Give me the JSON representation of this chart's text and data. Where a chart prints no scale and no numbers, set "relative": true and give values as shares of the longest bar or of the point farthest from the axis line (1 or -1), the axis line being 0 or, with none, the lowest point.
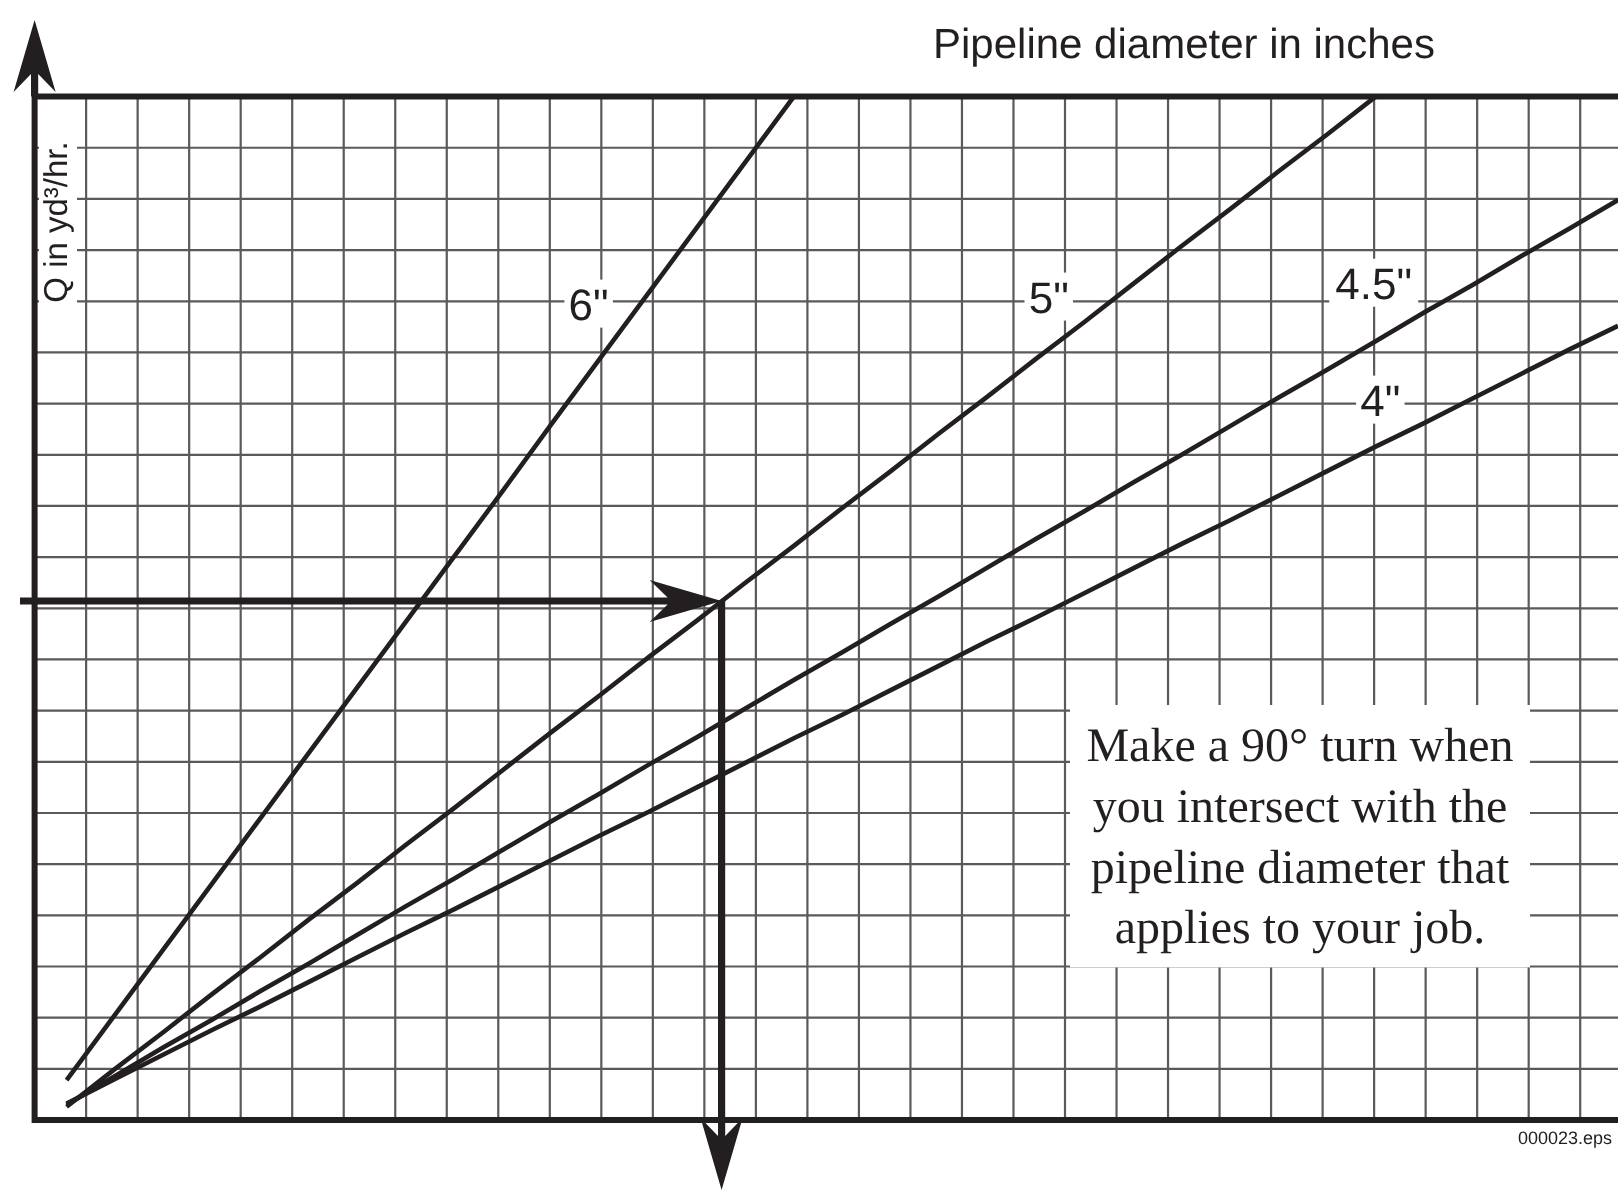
{
  "chart_data": {
    "type": "line",
    "title": "Pipeline diameter in inches",
    "ylabel": "Q in yd³/hr.",
    "relative": true,
    "grid": true,
    "categories": [
      null,
      null,
      null,
      null,
      null,
      null,
      null,
      null,
      null,
      null,
      null,
      null,
      null,
      null,
      null,
      null,
      null,
      null,
      null,
      null,
      null,
      null,
      null,
      null,
      null,
      null,
      null,
      null,
      null,
      null,
      null,
      null,
      null
    ],
    "series": [
      {
        "name": "6\"",
        "color": "#231f20",
        "values": [
          0.039,
          0.103,
          0.167,
          0.231,
          0.295,
          0.359,
          0.423,
          0.487,
          0.551,
          0.615,
          0.68,
          0.744,
          0.808,
          0.872,
          0.936,
          1.0,
          null,
          null,
          null,
          null,
          null,
          null,
          null,
          null,
          null,
          null,
          null,
          null,
          null,
          null,
          null,
          null,
          null
        ]
      },
      {
        "name": "5\"",
        "color": "#231f20",
        "values": [
          0.013,
          0.05,
          0.086,
          0.123,
          0.159,
          0.196,
          0.232,
          0.269,
          0.305,
          0.342,
          0.379,
          0.415,
          0.452,
          0.488,
          0.525,
          0.561,
          0.598,
          0.634,
          0.671,
          0.707,
          0.744,
          0.78,
          0.817,
          0.854,
          0.89,
          0.927,
          0.963,
          1.0,
          null,
          null,
          null,
          null,
          null
        ]
      },
      {
        "name": "4.5\"",
        "color": "#231f20",
        "values": [
          0.015,
          0.043,
          0.071,
          0.098,
          0.126,
          0.153,
          0.181,
          0.209,
          0.236,
          0.264,
          0.292,
          0.319,
          0.347,
          0.374,
          0.402,
          0.43,
          0.457,
          0.485,
          0.512,
          0.54,
          0.568,
          0.595,
          0.623,
          0.65,
          0.678,
          0.706,
          0.733,
          0.761,
          0.789,
          0.816,
          0.844,
          0.871,
          0.899
        ]
      },
      {
        "name": "4\"",
        "color": "#231f20",
        "values": [
          0.016,
          0.04,
          0.064,
          0.088,
          0.111,
          0.135,
          0.159,
          0.183,
          0.206,
          0.23,
          0.254,
          0.278,
          0.301,
          0.325,
          0.349,
          0.373,
          0.396,
          0.42,
          0.444,
          0.468,
          0.491,
          0.515,
          0.539,
          0.563,
          0.586,
          0.61,
          0.634,
          0.658,
          0.681,
          0.705,
          0.729,
          0.753,
          0.776
        ]
      }
    ],
    "annotations": [
      "Make a 90° turn when\nyou intersect with the\npipeline diameter that\napplies to your job.",
      "000023.eps"
    ]
  }
}
